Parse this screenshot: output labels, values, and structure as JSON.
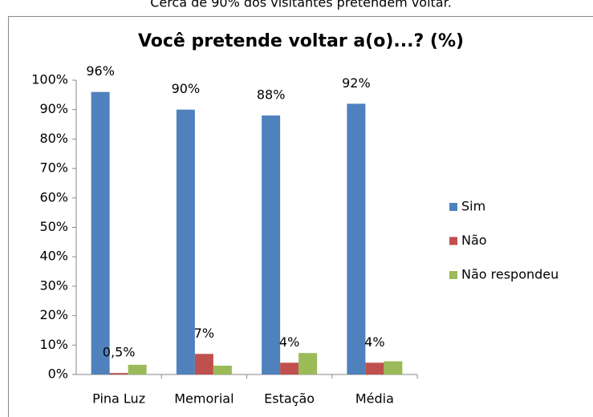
{
  "chart_data": {
    "type": "bar",
    "subtitle": "Cerca de 90% dos visitantes pretendem voltar.",
    "title": "Você pretende voltar a(o)...? (%)",
    "categories": [
      "Pina Luz",
      "Memorial",
      "Estação",
      "Média"
    ],
    "series": [
      {
        "name": "Sim",
        "color": "#4f81bd",
        "values": [
          96,
          90,
          88,
          92
        ],
        "value_labels": [
          "96%",
          "90%",
          "88%",
          "92%"
        ]
      },
      {
        "name": "Não",
        "color": "#c0504d",
        "values": [
          0.5,
          7,
          4,
          4
        ],
        "value_labels": [
          "0,5%",
          "7%",
          "4%",
          "4%"
        ]
      },
      {
        "name": "Não respondeu",
        "color": "#9bbb59",
        "values": [
          3.3,
          3,
          7.3,
          4.5
        ]
      }
    ],
    "ylim": [
      0,
      100
    ],
    "yticks": [
      {
        "value": 0,
        "label": "0%"
      },
      {
        "value": 10,
        "label": "10%"
      },
      {
        "value": 20,
        "label": "20%"
      },
      {
        "value": 30,
        "label": "30%"
      },
      {
        "value": 40,
        "label": "40%"
      },
      {
        "value": 50,
        "label": "50%"
      },
      {
        "value": 60,
        "label": "60%"
      },
      {
        "value": 70,
        "label": "70%"
      },
      {
        "value": 80,
        "label": "80%"
      },
      {
        "value": 90,
        "label": "90%"
      },
      {
        "value": 100,
        "label": "100%"
      }
    ],
    "grid": false,
    "legend": "right"
  }
}
